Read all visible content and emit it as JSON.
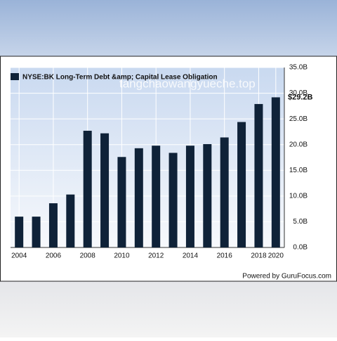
{
  "chart_data": {
    "type": "bar",
    "legend": "NYSE:BK Long-Term Debt &amp; Capital Lease Obligation",
    "watermark": "tangchaowangyueche.top",
    "credit": "Powered by GuruFocus.com",
    "categories": [
      "2004",
      null,
      "2006",
      null,
      "2008",
      null,
      "2010",
      null,
      "2012",
      null,
      "2014",
      null,
      "2016",
      null,
      "2018",
      "2020"
    ],
    "values": [
      6.0,
      6.0,
      8.6,
      10.3,
      22.7,
      22.2,
      17.6,
      19.3,
      19.8,
      18.4,
      19.8,
      20.1,
      21.4,
      24.4,
      27.9,
      29.2
    ],
    "value_labels": [
      null,
      null,
      null,
      null,
      null,
      null,
      null,
      null,
      null,
      null,
      null,
      null,
      null,
      null,
      null,
      "$29.2B"
    ],
    "color": "#0f2238",
    "ylim": [
      0,
      35
    ],
    "yticks": [
      {
        "value": 0,
        "label": "0.0B"
      },
      {
        "value": 5,
        "label": "5.0B"
      },
      {
        "value": 10,
        "label": "10.0B"
      },
      {
        "value": 15,
        "label": "15.0B"
      },
      {
        "value": 20,
        "label": "20.0B"
      },
      {
        "value": 25,
        "label": "25.0B"
      },
      {
        "value": 30,
        "label": "30.0B"
      },
      {
        "value": 35,
        "label": "35.0B"
      }
    ],
    "grid": true
  }
}
